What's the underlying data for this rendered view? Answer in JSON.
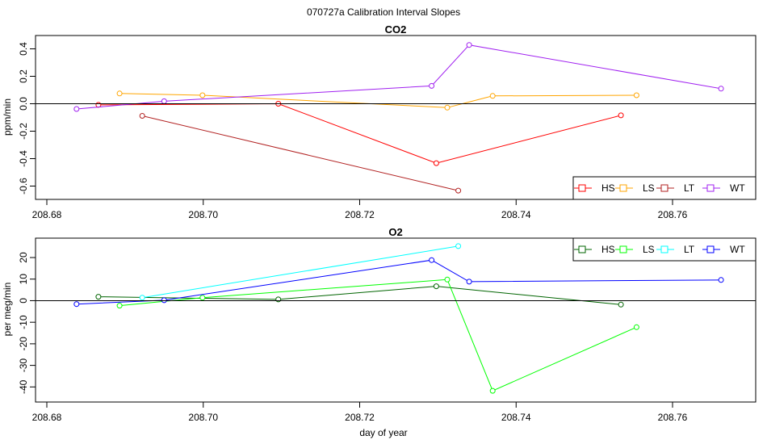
{
  "title": "070727a   Calibration Interval Slopes",
  "xlabel": "day of year",
  "chart_data": [
    {
      "type": "line",
      "title": "CO2",
      "ylabel": "ppm/min",
      "xlim": [
        208.68,
        208.77
      ],
      "ylim": [
        -0.65,
        0.45
      ],
      "x_ticks": [
        "208.68",
        "208.70",
        "208.72",
        "208.74",
        "208.76"
      ],
      "y_ticks": [
        "-0.6",
        "-0.4",
        "-0.2",
        "0.0",
        "0.2",
        "0.4"
      ],
      "reference_line": 0,
      "legend_position": "bottom-right",
      "series": [
        {
          "name": "HS",
          "color": "#ff0000",
          "points": [
            [
              208.6866,
              -0.008
            ],
            [
              208.7096,
              0.0
            ],
            [
              208.7298,
              -0.433
            ],
            [
              208.7534,
              -0.085
            ]
          ]
        },
        {
          "name": "LS",
          "color": "#ffa500",
          "points": [
            [
              208.6893,
              0.075
            ],
            [
              208.6999,
              0.062
            ],
            [
              208.7312,
              -0.028
            ],
            [
              208.737,
              0.057
            ],
            [
              208.7554,
              0.062
            ]
          ]
        },
        {
          "name": "LT",
          "color": "#b22222",
          "points": [
            [
              208.6922,
              -0.088
            ],
            [
              208.7326,
              -0.633
            ]
          ]
        },
        {
          "name": "WT",
          "color": "#a020f0",
          "points": [
            [
              208.6838,
              -0.038
            ],
            [
              208.695,
              0.018
            ],
            [
              208.7292,
              0.13
            ],
            [
              208.734,
              0.428
            ],
            [
              208.7662,
              0.11
            ]
          ]
        }
      ]
    },
    {
      "type": "line",
      "title": "O2",
      "ylabel": "per meg/min",
      "xlim": [
        208.68,
        208.77
      ],
      "ylim": [
        -44,
        26
      ],
      "x_ticks": [
        "208.68",
        "208.70",
        "208.72",
        "208.74",
        "208.76"
      ],
      "y_ticks": [
        "-40",
        "-30",
        "-20",
        "-10",
        "0",
        "10",
        "20"
      ],
      "reference_line": 0,
      "legend_position": "top-right",
      "series": [
        {
          "name": "HS",
          "color": "#006400",
          "points": [
            [
              208.6866,
              1.8
            ],
            [
              208.7096,
              0.6
            ],
            [
              208.7298,
              6.7
            ],
            [
              208.7534,
              -1.8
            ]
          ]
        },
        {
          "name": "LS",
          "color": "#00ff00",
          "points": [
            [
              208.6893,
              -2.3
            ],
            [
              208.6999,
              1.4
            ],
            [
              208.7312,
              9.8
            ],
            [
              208.737,
              -41.8
            ],
            [
              208.7554,
              -12.3
            ]
          ]
        },
        {
          "name": "LT",
          "color": "#00ffff",
          "points": [
            [
              208.6922,
              1.4
            ],
            [
              208.7326,
              25.3
            ]
          ]
        },
        {
          "name": "WT",
          "color": "#0000ff",
          "points": [
            [
              208.6838,
              -1.6
            ],
            [
              208.695,
              0.2
            ],
            [
              208.7292,
              18.8
            ],
            [
              208.734,
              8.8
            ],
            [
              208.7662,
              9.6
            ]
          ]
        }
      ]
    }
  ]
}
